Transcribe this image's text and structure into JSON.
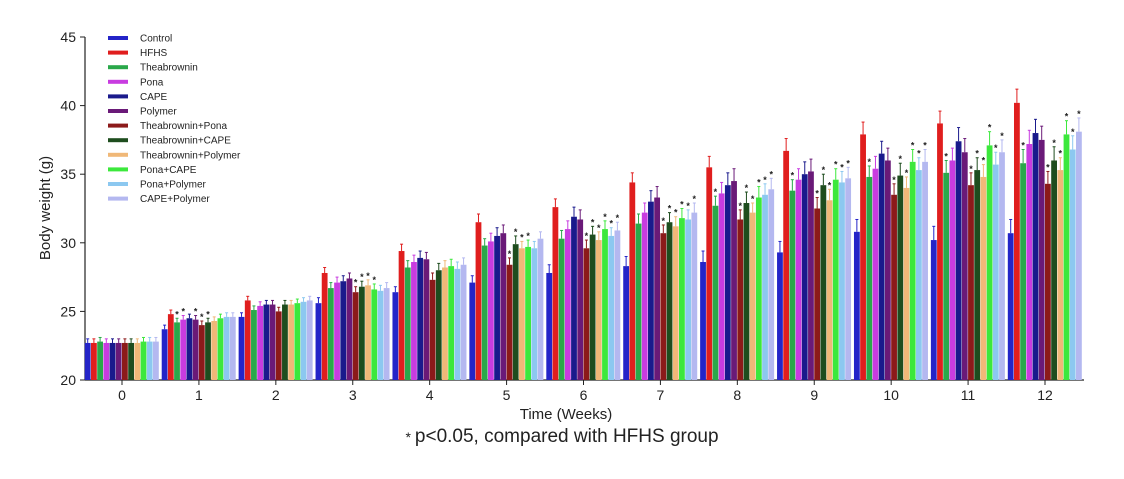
{
  "footnote": "p<0.05, compared with HFHS group",
  "footnote_marker": "*",
  "chart_data": {
    "type": "bar",
    "title": "",
    "xlabel": "Time (Weeks)",
    "ylabel": "Body weight (g)",
    "ylim": [
      20,
      45
    ],
    "yticks": [
      20,
      25,
      30,
      35,
      40,
      45
    ],
    "categories": [
      "0",
      "1",
      "2",
      "3",
      "4",
      "5",
      "6",
      "7",
      "8",
      "9",
      "10",
      "11",
      "12"
    ],
    "legend_position": "top-left",
    "significance_marker": "*",
    "series": [
      {
        "name": "Control",
        "color": "#2424c8",
        "values": [
          22.7,
          23.7,
          24.6,
          25.6,
          26.4,
          27.1,
          27.8,
          28.3,
          28.6,
          29.3,
          30.8,
          30.2,
          30.7
        ],
        "errors": [
          0.3,
          0.3,
          0.3,
          0.4,
          0.4,
          0.5,
          0.6,
          0.7,
          0.8,
          0.8,
          0.9,
          1.0,
          1.0
        ]
      },
      {
        "name": "HFHS",
        "color": "#e01e1e",
        "values": [
          22.7,
          24.8,
          25.8,
          27.8,
          29.4,
          31.5,
          32.6,
          34.4,
          35.5,
          36.7,
          37.9,
          38.7,
          40.2
        ],
        "errors": [
          0.3,
          0.3,
          0.3,
          0.4,
          0.5,
          0.6,
          0.6,
          0.7,
          0.8,
          0.9,
          0.9,
          0.9,
          1.0
        ]
      },
      {
        "name": "Theabrownin",
        "color": "#2aa84a",
        "values": [
          22.8,
          24.2,
          25.1,
          26.7,
          28.2,
          29.8,
          30.3,
          31.4,
          32.7,
          33.8,
          34.8,
          35.1,
          35.8
        ],
        "errors": [
          0.3,
          0.3,
          0.3,
          0.4,
          0.5,
          0.5,
          0.6,
          0.7,
          0.7,
          0.8,
          0.8,
          0.9,
          1.0
        ]
      },
      {
        "name": "Pona",
        "color": "#c83ce0",
        "values": [
          22.7,
          24.4,
          25.4,
          27.1,
          28.6,
          30.1,
          31.0,
          32.2,
          33.6,
          34.6,
          35.4,
          36.0,
          37.2
        ],
        "errors": [
          0.3,
          0.3,
          0.3,
          0.4,
          0.5,
          0.6,
          0.6,
          0.7,
          0.8,
          0.8,
          0.9,
          0.9,
          1.0
        ]
      },
      {
        "name": "CAPE",
        "color": "#1a1a8c",
        "values": [
          22.7,
          24.5,
          25.5,
          27.2,
          28.9,
          30.5,
          31.9,
          33.0,
          34.2,
          35.0,
          36.5,
          37.4,
          38.0
        ],
        "errors": [
          0.3,
          0.3,
          0.3,
          0.4,
          0.5,
          0.6,
          0.7,
          0.8,
          0.9,
          0.9,
          0.9,
          1.0,
          1.0
        ]
      },
      {
        "name": "Polymer",
        "color": "#6a1a78",
        "values": [
          22.7,
          24.4,
          25.5,
          27.4,
          28.8,
          30.7,
          31.7,
          33.3,
          34.5,
          35.2,
          36.0,
          36.6,
          37.5
        ],
        "errors": [
          0.3,
          0.3,
          0.3,
          0.4,
          0.5,
          0.6,
          0.7,
          0.8,
          0.9,
          0.9,
          0.9,
          1.0,
          1.0
        ]
      },
      {
        "name": "Theabrownin+Pona",
        "color": "#8c1a1a",
        "values": [
          22.7,
          24.0,
          25.0,
          26.4,
          27.3,
          28.4,
          29.6,
          30.7,
          31.7,
          32.5,
          33.5,
          34.2,
          34.3
        ],
        "errors": [
          0.3,
          0.3,
          0.3,
          0.4,
          0.5,
          0.5,
          0.6,
          0.6,
          0.7,
          0.8,
          0.8,
          0.9,
          0.9
        ]
      },
      {
        "name": "Theabrownin+CAPE",
        "color": "#1e4d1e",
        "values": [
          22.7,
          24.2,
          25.5,
          26.8,
          28.0,
          29.9,
          30.6,
          31.5,
          32.9,
          34.2,
          34.9,
          35.3,
          36.0
        ],
        "errors": [
          0.3,
          0.3,
          0.3,
          0.4,
          0.5,
          0.6,
          0.6,
          0.7,
          0.8,
          0.8,
          0.9,
          0.9,
          1.0
        ]
      },
      {
        "name": "Theabrownin+Polymer",
        "color": "#f0b878",
        "values": [
          22.7,
          24.3,
          25.5,
          26.9,
          28.2,
          29.6,
          30.2,
          31.2,
          32.2,
          33.1,
          34.0,
          34.8,
          35.3
        ],
        "errors": [
          0.3,
          0.3,
          0.3,
          0.4,
          0.5,
          0.5,
          0.6,
          0.7,
          0.7,
          0.8,
          0.8,
          0.9,
          0.9
        ]
      },
      {
        "name": "Pona+CAPE",
        "color": "#3ce83c",
        "values": [
          22.8,
          24.5,
          25.6,
          26.6,
          28.3,
          29.7,
          31.0,
          31.8,
          33.3,
          34.6,
          35.9,
          37.1,
          37.9
        ],
        "errors": [
          0.3,
          0.3,
          0.3,
          0.4,
          0.5,
          0.5,
          0.6,
          0.7,
          0.8,
          0.8,
          0.9,
          1.0,
          1.0
        ]
      },
      {
        "name": "Pona+Polymer",
        "color": "#8cc8f0",
        "values": [
          22.8,
          24.6,
          25.7,
          26.5,
          28.1,
          29.6,
          30.5,
          31.7,
          33.5,
          34.4,
          35.3,
          35.7,
          36.8
        ],
        "errors": [
          0.3,
          0.3,
          0.3,
          0.4,
          0.5,
          0.5,
          0.6,
          0.7,
          0.8,
          0.8,
          0.9,
          0.9,
          1.0
        ]
      },
      {
        "name": "CAPE+Polymer",
        "color": "#b4b8f0",
        "values": [
          22.8,
          24.6,
          25.8,
          26.7,
          28.4,
          30.3,
          30.9,
          32.2,
          33.9,
          34.7,
          35.9,
          36.6,
          38.1
        ],
        "errors": [
          0.3,
          0.3,
          0.3,
          0.4,
          0.5,
          0.5,
          0.6,
          0.7,
          0.8,
          0.8,
          0.9,
          0.9,
          1.0
        ]
      }
    ],
    "significant": [
      [],
      [],
      [],
      [],
      [],
      [],
      [],
      [],
      [],
      [],
      [],
      []
    ],
    "significant_points": [
      [
        1,
        2
      ],
      [
        1,
        3
      ],
      [
        1,
        5
      ],
      [
        1,
        6
      ],
      [
        1,
        7
      ],
      [
        3,
        6
      ],
      [
        3,
        7
      ],
      [
        3,
        8
      ],
      [
        3,
        9
      ],
      [
        5,
        6
      ],
      [
        5,
        7
      ],
      [
        5,
        8
      ],
      [
        5,
        9
      ],
      [
        6,
        6
      ],
      [
        6,
        7
      ],
      [
        6,
        8
      ],
      [
        6,
        9
      ],
      [
        6,
        10
      ],
      [
        6,
        11
      ],
      [
        7,
        6
      ],
      [
        7,
        7
      ],
      [
        7,
        8
      ],
      [
        7,
        9
      ],
      [
        7,
        10
      ],
      [
        7,
        11
      ],
      [
        8,
        2
      ],
      [
        8,
        6
      ],
      [
        8,
        7
      ],
      [
        8,
        8
      ],
      [
        8,
        9
      ],
      [
        8,
        10
      ],
      [
        8,
        11
      ],
      [
        9,
        2
      ],
      [
        9,
        6
      ],
      [
        9,
        7
      ],
      [
        9,
        8
      ],
      [
        9,
        9
      ],
      [
        9,
        10
      ],
      [
        9,
        11
      ],
      [
        10,
        2
      ],
      [
        10,
        6
      ],
      [
        10,
        7
      ],
      [
        10,
        8
      ],
      [
        10,
        9
      ],
      [
        10,
        10
      ],
      [
        10,
        11
      ],
      [
        11,
        2
      ],
      [
        11,
        6
      ],
      [
        11,
        7
      ],
      [
        11,
        8
      ],
      [
        11,
        9
      ],
      [
        11,
        10
      ],
      [
        11,
        11
      ],
      [
        12,
        2
      ],
      [
        12,
        6
      ],
      [
        12,
        7
      ],
      [
        12,
        8
      ],
      [
        12,
        9
      ],
      [
        12,
        10
      ],
      [
        12,
        11
      ]
    ]
  }
}
